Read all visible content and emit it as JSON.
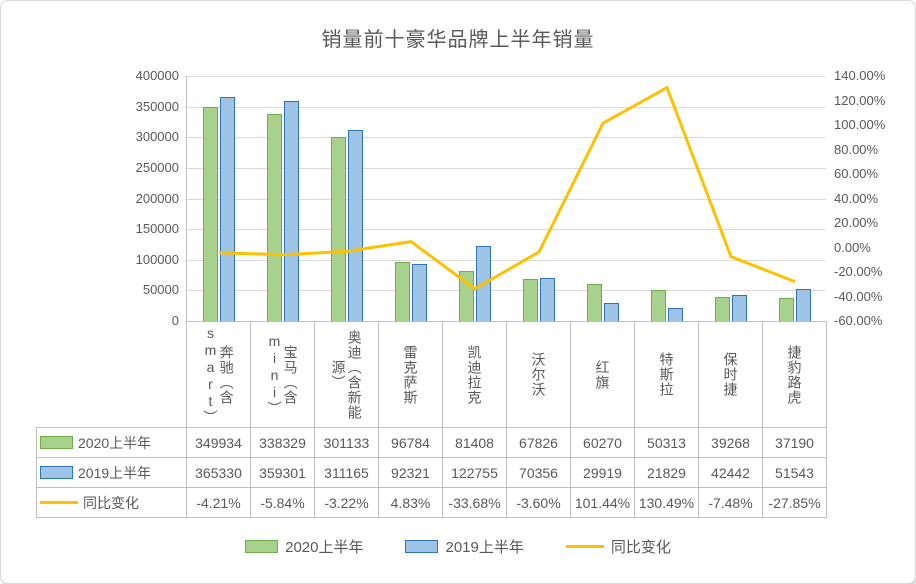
{
  "chart_data": {
    "type": "combo",
    "title": "销量前十豪华品牌上半年销量",
    "categories": [
      "奔驰（含smart）",
      "宝马（含mini）",
      "奥迪（含新能源）",
      "雷克萨斯",
      "凯迪拉克",
      "沃尔沃",
      "红旗",
      "特斯拉",
      "保时捷",
      "捷豹路虎"
    ],
    "series": [
      {
        "name": "2020上半年",
        "type": "bar",
        "axis": "left",
        "values": [
          349934,
          338329,
          301133,
          96784,
          81408,
          67826,
          60270,
          50313,
          39268,
          37190
        ],
        "fill": "#A9D18E",
        "stroke": "#70AD47"
      },
      {
        "name": "2019上半年",
        "type": "bar",
        "axis": "left",
        "values": [
          365330,
          359301,
          311165,
          92321,
          122755,
          70356,
          29919,
          21829,
          42442,
          51543
        ],
        "fill": "#9DC3E6",
        "stroke": "#2E75B6"
      },
      {
        "name": "同比变化",
        "type": "line",
        "axis": "right",
        "format": "percent",
        "values": [
          -4.21,
          -5.84,
          -3.22,
          4.83,
          -33.68,
          -3.6,
          101.44,
          130.49,
          -7.48,
          -27.85
        ],
        "color": "#FFC000"
      }
    ],
    "left_axis": {
      "min": 0,
      "max": 400000,
      "step": 50000
    },
    "right_axis": {
      "min": -60,
      "max": 140,
      "step": 20,
      "format": "percent2"
    },
    "grid": true,
    "legend_position": "bottom",
    "data_table": true,
    "colors": {
      "text": "#595959",
      "gridline": "#D9D9D9",
      "axis_line": "#BFBFBF",
      "table_border": "#BFBFBF"
    }
  }
}
